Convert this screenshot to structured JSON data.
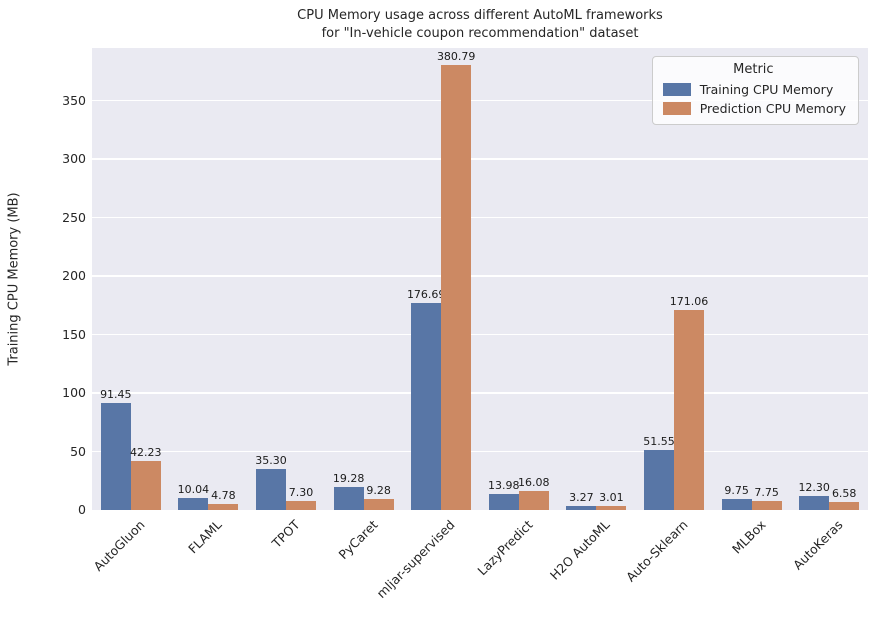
{
  "chart_data": {
    "type": "bar",
    "title_line1": "CPU Memory usage across different AutoML frameworks",
    "title_line2": "for \"In-vehicle coupon recommendation\" dataset",
    "ylabel": "Training CPU Memory (MB)",
    "xlabel": "",
    "legend_title": "Metric",
    "legend_position": "upper right",
    "grid": true,
    "plot_bg_color": "#EAEAF2",
    "gridline_color": "#FFFFFF",
    "bar_label_format": "%.2f",
    "categories": [
      "AutoGluon",
      "FLAML",
      "TPOT",
      "PyCaret",
      "mljar-supervised",
      "LazyPredict",
      "H2O AutoML",
      "Auto-Sklearn",
      "MLBox",
      "AutoKeras"
    ],
    "series": [
      {
        "name": "Training CPU Memory",
        "color": "#5876A6",
        "values": [
          91.45,
          10.04,
          35.3,
          19.28,
          176.69,
          13.98,
          3.27,
          51.55,
          9.75,
          12.3
        ]
      },
      {
        "name": "Prediction CPU Memory",
        "color": "#CC8963",
        "values": [
          42.23,
          4.78,
          7.3,
          9.28,
          380.79,
          16.08,
          3.01,
          171.06,
          7.75,
          6.58
        ]
      }
    ],
    "yticks": [
      0,
      50,
      100,
      150,
      200,
      250,
      300,
      350
    ],
    "ylim": [
      0,
      395
    ]
  }
}
